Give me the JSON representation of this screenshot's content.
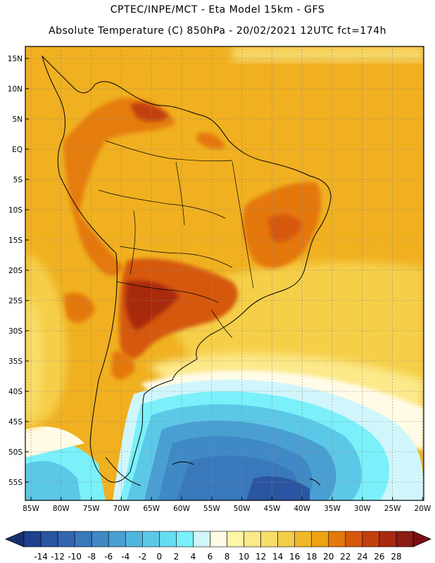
{
  "title_line1": "CPTEC/INPE/MCT -  Eta Model 15km - GFS",
  "title_line2": "Absolute Temperature (C) 850hPa - 20/02/2021 12UTC fct=174h",
  "lat_labels": [
    "15N",
    "10N",
    "5N",
    "EQ",
    "5S",
    "10S",
    "15S",
    "20S",
    "25S",
    "30S",
    "35S",
    "40S",
    "45S",
    "50S",
    "55S"
  ],
  "lon_labels": [
    "85W",
    "80W",
    "75W",
    "70W",
    "65W",
    "60W",
    "55W",
    "50W",
    "45W",
    "40W",
    "35W",
    "30W",
    "25W",
    "20W"
  ],
  "colorbar": {
    "ticks": [
      "-14",
      "-12",
      "-10",
      "-8",
      "-6",
      "-4",
      "-2",
      "0",
      "2",
      "4",
      "6",
      "8",
      "10",
      "12",
      "14",
      "16",
      "18",
      "20",
      "22",
      "24",
      "26",
      "28"
    ],
    "colors": [
      "#1f3f8f",
      "#2a55a0",
      "#3366b0",
      "#3a78bc",
      "#3f89c6",
      "#4a9fd2",
      "#4fb5dd",
      "#5cc8e8",
      "#66dcf2",
      "#7af0fa",
      "#d0f6fc",
      "#fffbe6",
      "#fff6a8",
      "#fce98a",
      "#f8dd6a",
      "#f3cd4a",
      "#efb728",
      "#eda210",
      "#e4780a",
      "#d6580c",
      "#c2400e",
      "#a82a10",
      "#8a1c12"
    ],
    "low_arrow_color": "#1a2f70",
    "high_arrow_color": "#7a0f14"
  },
  "colors": {
    "warm_background": "#f0b020",
    "hot": "#d6580c",
    "cold_ocean": "#3f89c6"
  }
}
